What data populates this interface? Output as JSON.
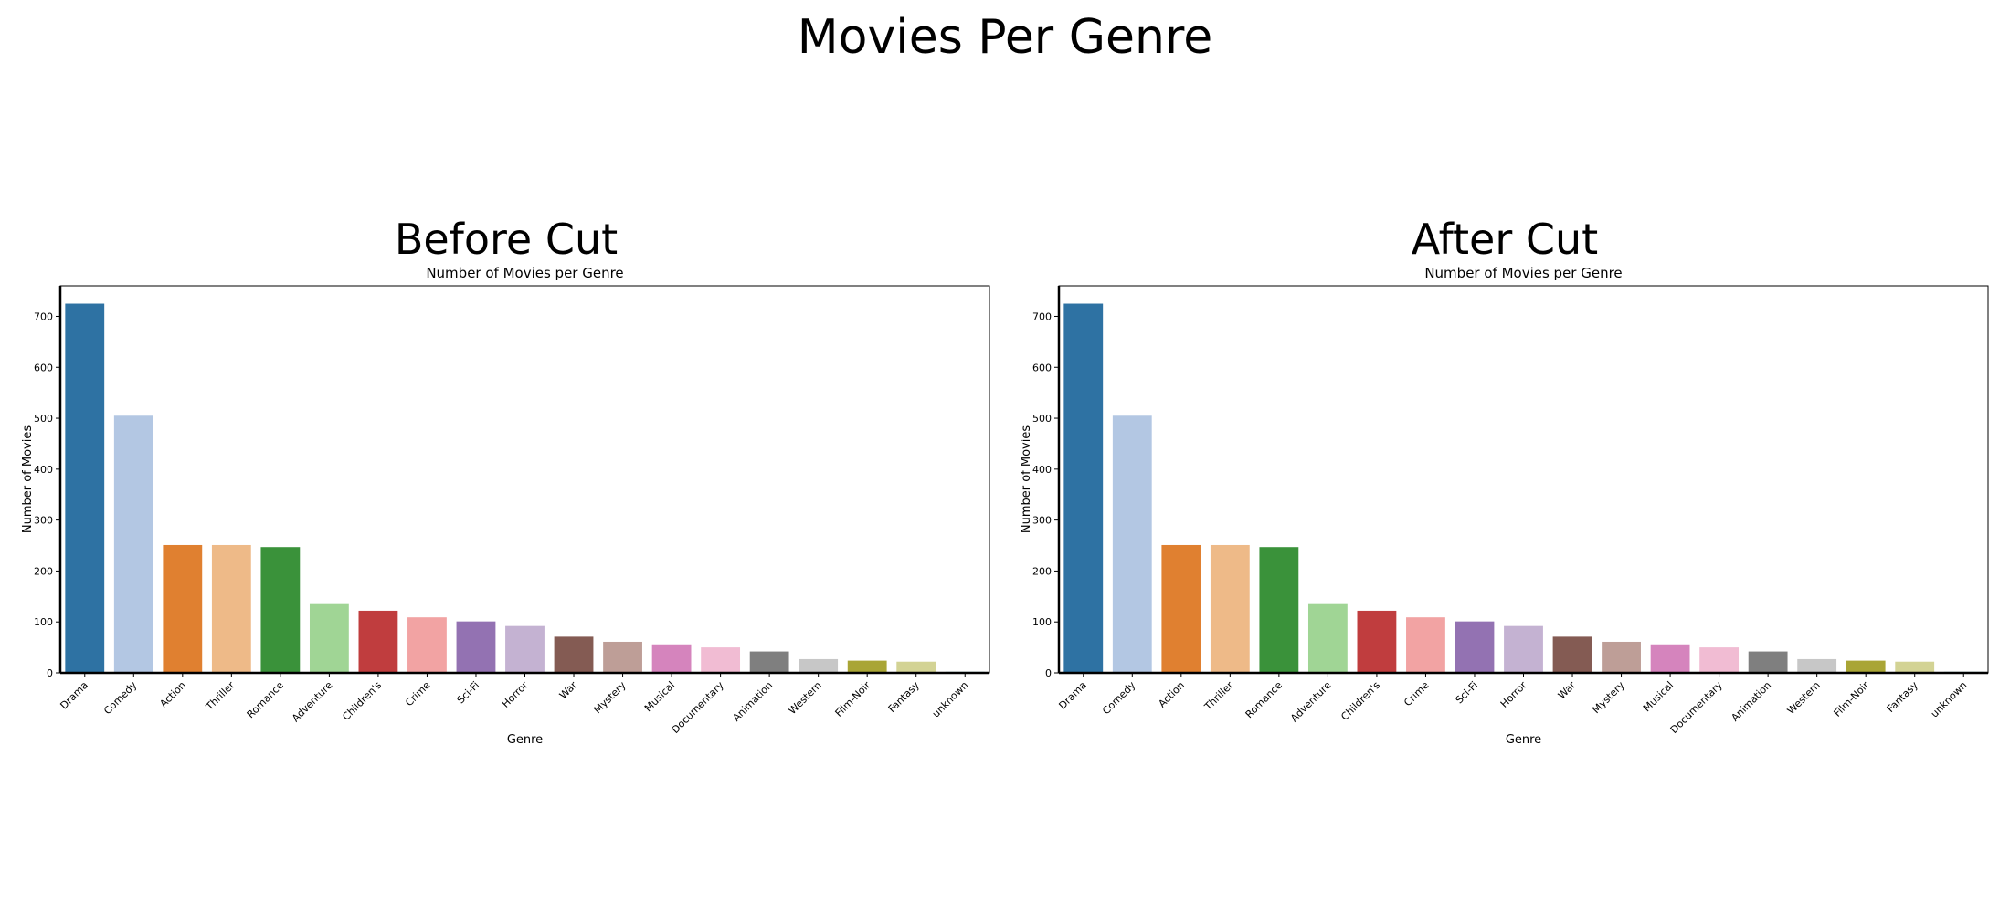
{
  "figure_title": "Movies Per Genre",
  "chart_data": [
    {
      "type": "bar",
      "panel_title": "Before Cut",
      "title": "Number of Movies per Genre",
      "xlabel": "Genre",
      "ylabel": "Number of Movies",
      "ylim": [
        0,
        760
      ],
      "yticks": [
        0,
        100,
        200,
        300,
        400,
        500,
        600,
        700
      ],
      "categories": [
        "Drama",
        "Comedy",
        "Action",
        "Thriller",
        "Romance",
        "Adventure",
        "Children's",
        "Crime",
        "Sci-Fi",
        "Horror",
        "War",
        "Mystery",
        "Musical",
        "Documentary",
        "Animation",
        "Western",
        "Film-Noir",
        "Fantasy",
        "unknown"
      ],
      "values": [
        725,
        505,
        251,
        251,
        247,
        135,
        122,
        109,
        101,
        92,
        71,
        61,
        56,
        50,
        42,
        27,
        24,
        22,
        2
      ],
      "colors": [
        "#2e72a3",
        "#b3c7e3",
        "#e08030",
        "#eeba88",
        "#3a923a",
        "#a0d595",
        "#c03d3e",
        "#f2a3a3",
        "#9372b2",
        "#c4b2d2",
        "#845b53",
        "#be9e97",
        "#d584bd",
        "#f1bcd3",
        "#7f7f7f",
        "#c7c7c7",
        "#a9a535",
        "#d3d394",
        "#2e9ea9"
      ],
      "grid": false
    },
    {
      "type": "bar",
      "panel_title": "After Cut",
      "title": "Number of Movies per Genre",
      "xlabel": "Genre",
      "ylabel": "Number of Movies",
      "ylim": [
        0,
        760
      ],
      "yticks": [
        0,
        100,
        200,
        300,
        400,
        500,
        600,
        700
      ],
      "categories": [
        "Drama",
        "Comedy",
        "Action",
        "Thriller",
        "Romance",
        "Adventure",
        "Children's",
        "Crime",
        "Sci-Fi",
        "Horror",
        "War",
        "Mystery",
        "Musical",
        "Documentary",
        "Animation",
        "Western",
        "Film-Noir",
        "Fantasy",
        "unknown"
      ],
      "values": [
        725,
        505,
        251,
        251,
        247,
        135,
        122,
        109,
        101,
        92,
        71,
        61,
        56,
        50,
        42,
        27,
        24,
        22,
        2
      ],
      "colors": [
        "#2e72a3",
        "#b3c7e3",
        "#e08030",
        "#eeba88",
        "#3a923a",
        "#a0d595",
        "#c03d3e",
        "#f2a3a3",
        "#9372b2",
        "#c4b2d2",
        "#845b53",
        "#be9e97",
        "#d584bd",
        "#f1bcd3",
        "#7f7f7f",
        "#c7c7c7",
        "#a9a535",
        "#d3d394",
        "#2e9ea9"
      ],
      "grid": false
    }
  ]
}
